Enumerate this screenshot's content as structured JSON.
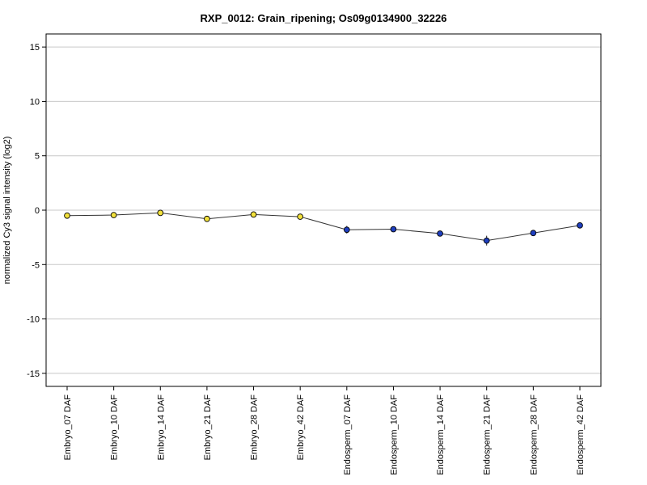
{
  "chart_data": {
    "type": "line",
    "title": "RXP_0012: Grain_ripening; Os09g0134900_32226",
    "xlabel": "",
    "ylabel": "normalized Cy3 signal intensity (log2)",
    "ylim": [
      -16.2,
      16.2
    ],
    "yticks": [
      -15,
      -10,
      -5,
      0,
      5,
      10,
      15
    ],
    "grid": true,
    "categories": [
      "Embryo_07 DAF",
      "Embryo_10 DAF",
      "Embryo_14 DAF",
      "Embryo_21 DAF",
      "Embryo_28 DAF",
      "Embryo_42 DAF",
      "Endosperm_07 DAF",
      "Endosperm_10 DAF",
      "Endosperm_14 DAF",
      "Endosperm_21 DAF",
      "Endosperm_28 DAF",
      "Endosperm_42 DAF"
    ],
    "values": [
      -0.5,
      -0.45,
      -0.25,
      -0.8,
      -0.4,
      -0.6,
      -1.8,
      -1.75,
      -2.15,
      -2.8,
      -2.1,
      -1.4
    ],
    "errors": [
      0.1,
      0.1,
      0.1,
      0.1,
      0.1,
      0.1,
      0.35,
      0.15,
      0.1,
      0.45,
      0.1,
      0.15
    ],
    "point_colors": [
      "#f2e13c",
      "#f2e13c",
      "#f2e13c",
      "#f2e13c",
      "#f2e13c",
      "#f2e13c",
      "#1f3fbf",
      "#1f3fbf",
      "#1f3fbf",
      "#1f3fbf",
      "#1f3fbf",
      "#1f3fbf"
    ],
    "line_color": "#333333"
  }
}
